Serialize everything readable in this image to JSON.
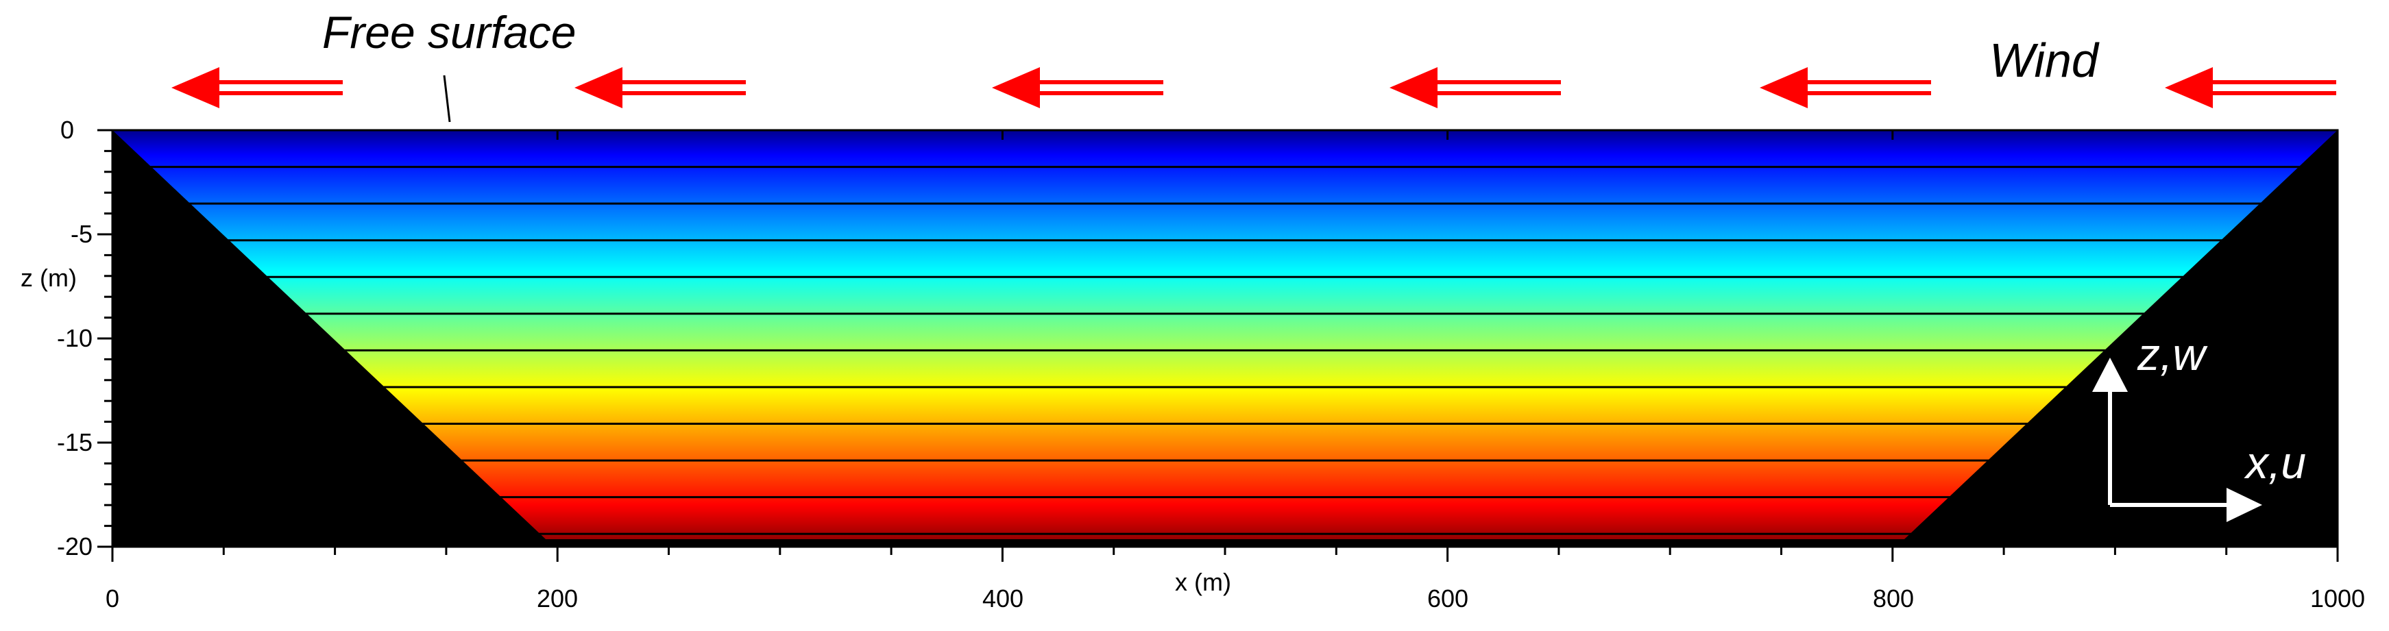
{
  "annotations": {
    "free_surface": "Free surface",
    "wind": "Wind",
    "z_axis_symbol": "z,w",
    "x_axis_symbol": "x,u"
  },
  "axes": {
    "x_label": "x (m)",
    "y_label": "z (m)",
    "x_range": [
      0,
      1000
    ],
    "y_range": [
      -20,
      0
    ],
    "x_ticks": [
      "0",
      "200",
      "400",
      "600",
      "800",
      "1000"
    ],
    "y_ticks": [
      "0",
      "-5",
      "-10",
      "-15",
      "-20"
    ]
  },
  "basin": {
    "top_width": 1000,
    "bottom_left_x": 190,
    "bottom_right_x": 810,
    "depth": 20,
    "isoline_count": 11
  },
  "wind": {
    "arrow_count": 6,
    "direction": "left"
  },
  "colors": {
    "wind_arrow": "#ff0000",
    "terrain": "#000000",
    "frame": "#000000",
    "coordinate_arrows": "#ffffff",
    "colormap": [
      "#00008f",
      "#0000ff",
      "#007fff",
      "#00ffff",
      "#7fff7f",
      "#ffff00",
      "#ff7f00",
      "#ff0000",
      "#7f0000"
    ]
  }
}
